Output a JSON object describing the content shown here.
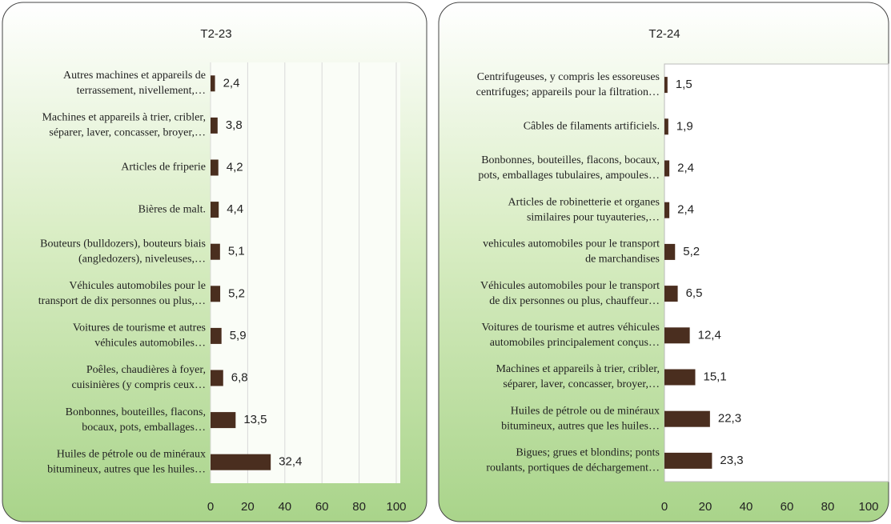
{
  "chart_data": [
    {
      "type": "bar",
      "orientation": "horizontal",
      "title": "T2-23",
      "color": "#4a2e1f",
      "categories": [
        [
          "Autres machines et appareils de",
          "terrassement, nivellement,…"
        ],
        [
          "Machines et appareils à trier, cribler,",
          "séparer, laver, concasser, broyer,…"
        ],
        [
          "Articles de friperie"
        ],
        [
          "Bières de malt."
        ],
        [
          "Bouteurs (bulldozers), bouteurs biais",
          "(angledozers), niveleuses,…"
        ],
        [
          "Véhicules automobiles pour le",
          "transport de dix personnes ou plus,…"
        ],
        [
          "Voitures de tourisme et autres",
          "véhicules automobiles…"
        ],
        [
          "Poêles, chaudières à foyer,",
          "cuisinières (y compris ceux…"
        ],
        [
          "Bonbonnes, bouteilles, flacons,",
          "bocaux, pots, emballages…"
        ],
        [
          "Huiles de pétrole ou de minéraux",
          "bitumineux, autres que les huiles…"
        ]
      ],
      "values": [
        2.4,
        3.8,
        4.2,
        4.4,
        5.1,
        5.2,
        5.9,
        6.8,
        13.5,
        32.4
      ],
      "value_labels": [
        "2,4",
        "3,8",
        "4,2",
        "4,4",
        "5,1",
        "5,2",
        "5,9",
        "6,8",
        "13,5",
        "32,4"
      ],
      "xlim": [
        0,
        100
      ],
      "xticks": [
        0,
        20,
        40,
        60,
        80,
        100
      ],
      "grid": true
    },
    {
      "type": "bar",
      "orientation": "horizontal",
      "title": "T2-24",
      "color": "#4a2e1f",
      "categories": [
        [
          "Centrifugeuses, y compris les essoreuses",
          "centrifuges; appareils pour la filtration…"
        ],
        [
          "Câbles de filaments artificiels."
        ],
        [
          "Bonbonnes, bouteilles, flacons, bocaux,",
          "pots, emballages tubulaires, ampoules…"
        ],
        [
          "Articles de robinetterie et organes",
          "similaires pour tuyauteries,…"
        ],
        [
          "vehicules automobiles pour le transport",
          "de marchandises"
        ],
        [
          "Véhicules automobiles pour le transport",
          "de dix personnes ou plus, chauffeur…"
        ],
        [
          "Voitures de tourisme et autres véhicules",
          "automobiles principalement conçus…"
        ],
        [
          "Machines et appareils à trier, cribler,",
          "séparer, laver, concasser, broyer,…"
        ],
        [
          "Huiles de pétrole ou de minéraux",
          "bitumineux, autres que les huiles…"
        ],
        [
          "Bigues;  grues et blondins; ponts",
          "roulants, portiques de déchargement…"
        ]
      ],
      "values": [
        1.5,
        1.9,
        2.4,
        2.4,
        5.2,
        6.5,
        12.4,
        15.1,
        22.3,
        23.3
      ],
      "value_labels": [
        "1,5",
        "1,9",
        "2,4",
        "2,4",
        "5,2",
        "6,5",
        "12,4",
        "15,1",
        "22,3",
        "23,3"
      ],
      "xlim": [
        0,
        100
      ],
      "xticks": [
        0,
        20,
        40,
        60,
        80,
        100
      ],
      "grid": false
    }
  ]
}
